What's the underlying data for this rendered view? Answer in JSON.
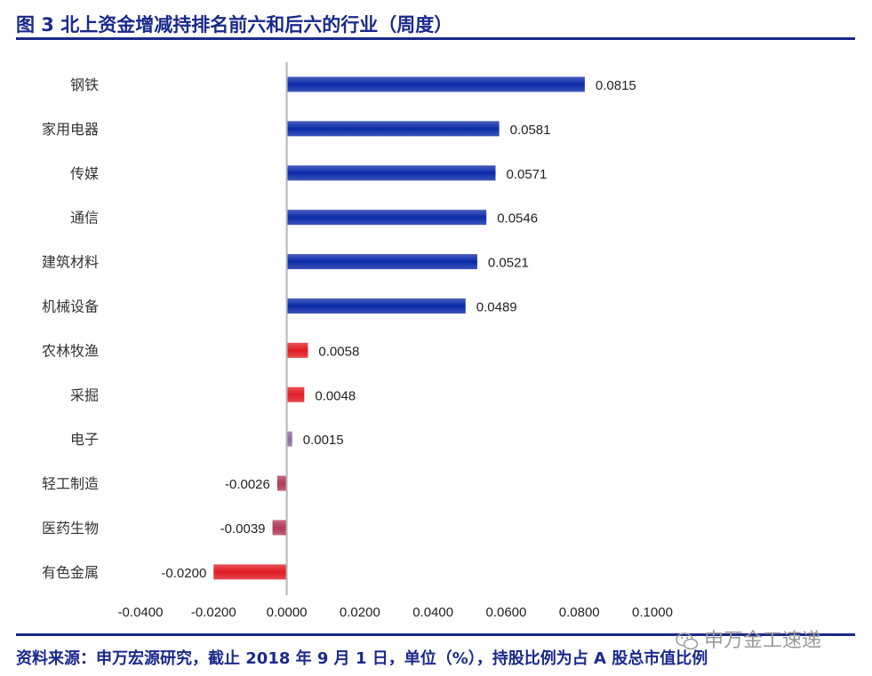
{
  "header": {
    "title": "图 3  北上资金增减持排名前六和后六的行业（周度）"
  },
  "chart_data": {
    "type": "bar",
    "orientation": "horizontal",
    "categories": [
      "钢铁",
      "家用电器",
      "传媒",
      "通信",
      "建筑材料",
      "机械设备",
      "农林牧渔",
      "采掘",
      "电子",
      "轻工制造",
      "医药生物",
      "有色金属"
    ],
    "values": [
      0.0815,
      0.0581,
      0.0571,
      0.0546,
      0.0521,
      0.0489,
      0.0058,
      0.0048,
      0.0015,
      -0.0026,
      -0.0039,
      -0.02
    ],
    "value_labels": [
      "0.0815",
      "0.0581",
      "0.0571",
      "0.0546",
      "0.0521",
      "0.0489",
      "0.0058",
      "0.0048",
      "0.0015",
      "-0.0026",
      "-0.0039",
      "-0.0200"
    ],
    "xlim": [
      -0.04,
      0.1
    ],
    "xticks": [
      "-0.0400",
      "-0.0200",
      "0.0000",
      "0.0200",
      "0.0400",
      "0.0600",
      "0.0800",
      "0.1000"
    ],
    "xtick_values": [
      -0.04,
      -0.02,
      0,
      0.02,
      0.04,
      0.06,
      0.08,
      0.1
    ],
    "colors": {
      "top": "#0b2aa8",
      "bottom": "#e01b22",
      "small": "#8d6aa6",
      "negative_small": "#b03a55"
    },
    "grid": false,
    "legend": "none"
  },
  "footer": {
    "source": "资料来源：申万宏源研究，截止 2018 年 9 月 1 日，单位（%），持股比例为占 A 股总市值比例"
  },
  "watermark": {
    "text": "申万金工速递",
    "icon": "wechat-icon"
  }
}
